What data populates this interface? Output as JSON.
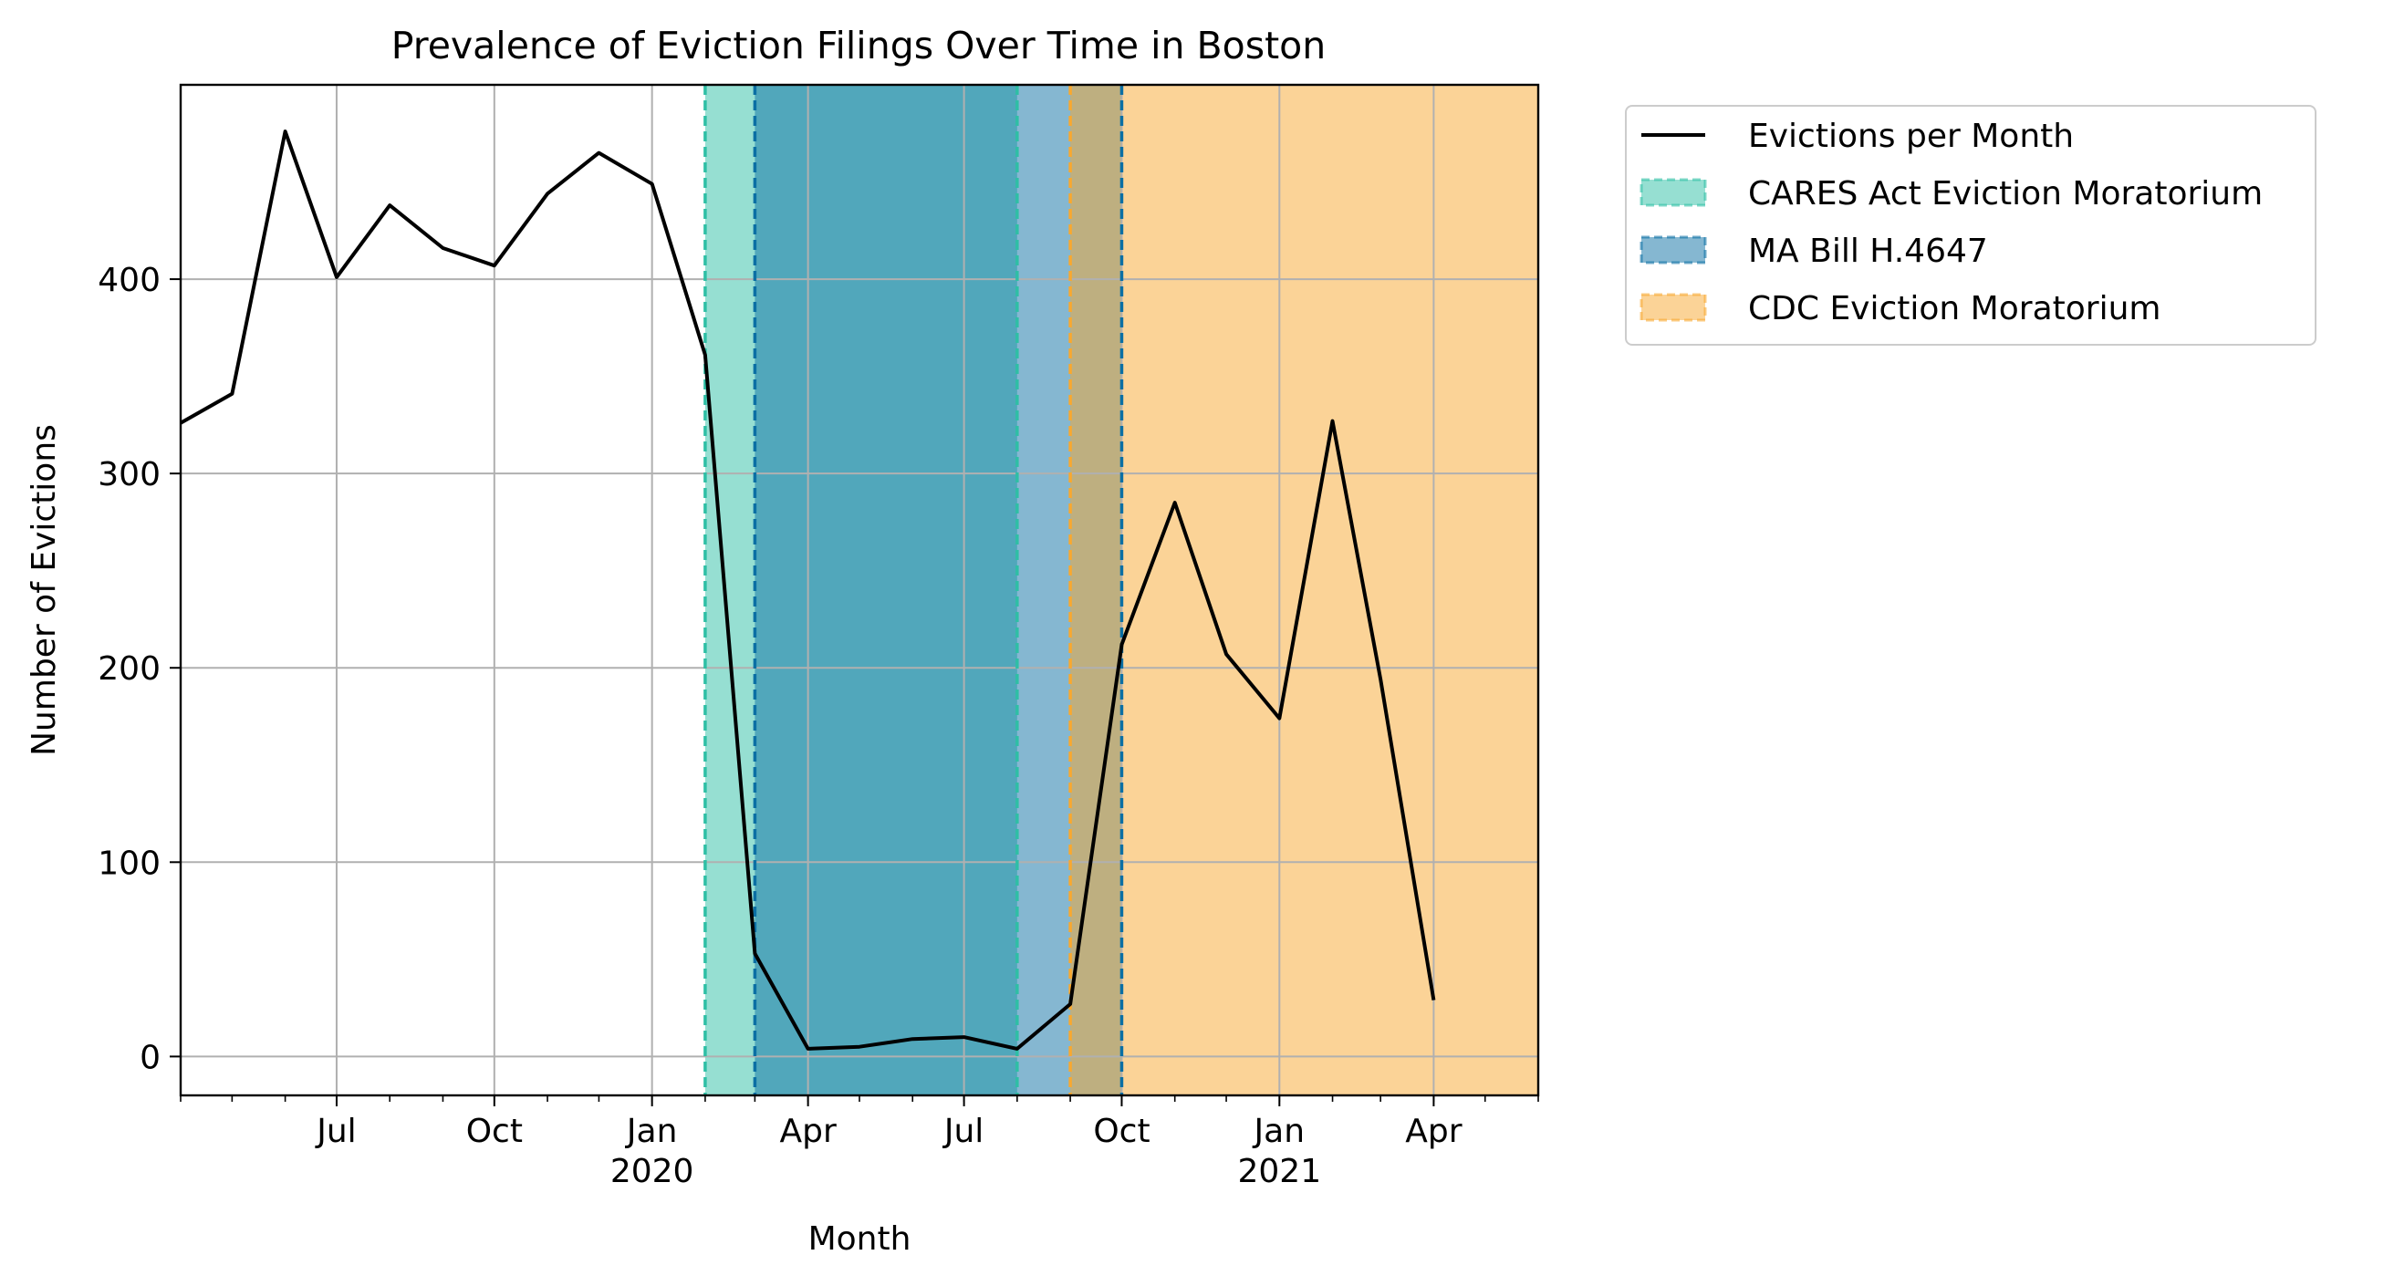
{
  "chart_data": {
    "type": "line",
    "title": "Prevalence of Eviction Filings Over Time in Boston",
    "xlabel": "Month",
    "ylabel": "Number of Evictions",
    "x_axis": {
      "kind": "date",
      "range": [
        "2019-04-01",
        "2021-06-01"
      ],
      "major_ticks": [
        {
          "date": "2019-07-01",
          "label": "Jul",
          "year": ""
        },
        {
          "date": "2019-10-01",
          "label": "Oct",
          "year": ""
        },
        {
          "date": "2020-01-01",
          "label": "Jan",
          "year": "2020"
        },
        {
          "date": "2020-04-01",
          "label": "Apr",
          "year": ""
        },
        {
          "date": "2020-07-01",
          "label": "Jul",
          "year": ""
        },
        {
          "date": "2020-10-01",
          "label": "Oct",
          "year": ""
        },
        {
          "date": "2021-01-01",
          "label": "Jan",
          "year": "2021"
        },
        {
          "date": "2021-04-01",
          "label": "Apr",
          "year": ""
        }
      ],
      "minor_ticks_monthly": true
    },
    "y_axis": {
      "range": [
        -20,
        500
      ],
      "ticks": [
        0,
        100,
        200,
        300,
        400
      ]
    },
    "grid": true,
    "legend_position": "outside-top-right",
    "series": [
      {
        "name": "Evictions per Month",
        "color": "#000000",
        "points": [
          {
            "x": "2019-04-01",
            "y": 326
          },
          {
            "x": "2019-05-01",
            "y": 341
          },
          {
            "x": "2019-06-01",
            "y": 476
          },
          {
            "x": "2019-07-01",
            "y": 401
          },
          {
            "x": "2019-08-01",
            "y": 438
          },
          {
            "x": "2019-09-01",
            "y": 416
          },
          {
            "x": "2019-10-01",
            "y": 407
          },
          {
            "x": "2019-11-01",
            "y": 444
          },
          {
            "x": "2019-12-01",
            "y": 465
          },
          {
            "x": "2020-01-01",
            "y": 449
          },
          {
            "x": "2020-02-01",
            "y": 361
          },
          {
            "x": "2020-03-01",
            "y": 53
          },
          {
            "x": "2020-04-01",
            "y": 4
          },
          {
            "x": "2020-05-01",
            "y": 5
          },
          {
            "x": "2020-06-01",
            "y": 9
          },
          {
            "x": "2020-07-01",
            "y": 10
          },
          {
            "x": "2020-08-01",
            "y": 4
          },
          {
            "x": "2020-09-01",
            "y": 27
          },
          {
            "x": "2020-10-01",
            "y": 212
          },
          {
            "x": "2020-11-01",
            "y": 285
          },
          {
            "x": "2020-12-01",
            "y": 207
          },
          {
            "x": "2021-01-01",
            "y": 174
          },
          {
            "x": "2021-02-01",
            "y": 327
          },
          {
            "x": "2021-03-01",
            "y": 194
          },
          {
            "x": "2021-04-01",
            "y": 29
          }
        ]
      }
    ],
    "shaded_periods": [
      {
        "name": "CARES Act Eviction Moratorium",
        "start": "2020-02-01",
        "end": "2020-08-01",
        "fill": "#2ebfa5",
        "edge": "#2ebfa5",
        "alpha": 0.5
      },
      {
        "name": "MA Bill H.4647",
        "start": "2020-03-01",
        "end": "2020-10-01",
        "fill": "#0b6fa4",
        "edge": "#0b6fa4",
        "alpha": 0.5
      },
      {
        "name": "CDC Eviction Moratorium",
        "start": "2020-09-01",
        "end": "2021-06-01",
        "fill": "#f8a830",
        "edge": "#f8a830",
        "alpha": 0.5
      }
    ]
  }
}
